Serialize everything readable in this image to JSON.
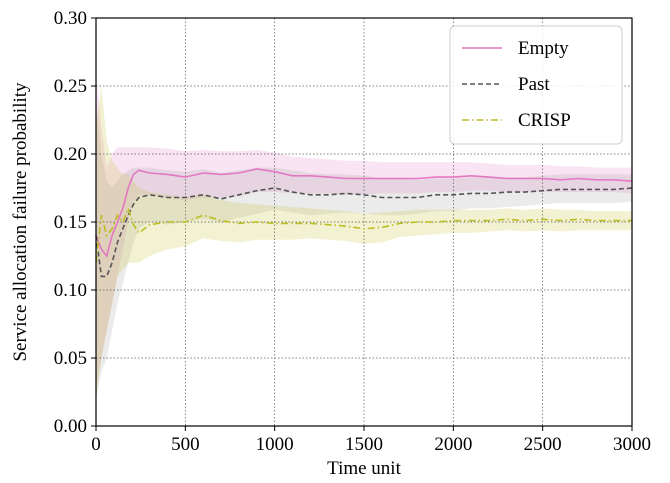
{
  "chart_data": {
    "type": "line",
    "xlabel": "Time unit",
    "ylabel": "Service allocation failure probability",
    "xlim": [
      0,
      3000
    ],
    "ylim": [
      0.0,
      0.3
    ],
    "xticks": [
      0,
      500,
      1000,
      1500,
      2000,
      2500,
      3000
    ],
    "xtick_labels": [
      "0",
      "500",
      "1000",
      "1500",
      "2000",
      "2500",
      "3000"
    ],
    "yticks": [
      0.0,
      0.05,
      0.1,
      0.15,
      0.2,
      0.25,
      0.3
    ],
    "ytick_labels": [
      "0.00",
      "0.05",
      "0.10",
      "0.15",
      "0.20",
      "0.25",
      "0.30"
    ],
    "grid": true,
    "legend_position": "top-right",
    "series": [
      {
        "name": "Empty",
        "color": "#e377c2",
        "line_style": "solid",
        "band_color": "#e377c2",
        "x": [
          0,
          30,
          60,
          90,
          120,
          150,
          180,
          210,
          240,
          300,
          400,
          500,
          600,
          700,
          800,
          900,
          1000,
          1100,
          1200,
          1300,
          1400,
          1500,
          1600,
          1700,
          1800,
          1900,
          2000,
          2100,
          2200,
          2300,
          2400,
          2500,
          2600,
          2700,
          2800,
          2900,
          3000
        ],
        "y": [
          0.14,
          0.13,
          0.125,
          0.14,
          0.15,
          0.16,
          0.175,
          0.185,
          0.188,
          0.186,
          0.185,
          0.183,
          0.186,
          0.185,
          0.186,
          0.189,
          0.187,
          0.184,
          0.184,
          0.183,
          0.182,
          0.182,
          0.182,
          0.182,
          0.182,
          0.183,
          0.183,
          0.184,
          0.183,
          0.182,
          0.182,
          0.182,
          0.181,
          0.182,
          0.181,
          0.181,
          0.18
        ],
        "upper": [
          0.26,
          0.22,
          0.19,
          0.2,
          0.205,
          0.205,
          0.205,
          0.205,
          0.205,
          0.205,
          0.204,
          0.202,
          0.203,
          0.202,
          0.202,
          0.203,
          0.201,
          0.198,
          0.197,
          0.196,
          0.195,
          0.195,
          0.194,
          0.194,
          0.194,
          0.194,
          0.194,
          0.194,
          0.193,
          0.192,
          0.192,
          0.192,
          0.191,
          0.191,
          0.19,
          0.19,
          0.19
        ],
        "lower": [
          0.03,
          0.05,
          0.07,
          0.09,
          0.11,
          0.13,
          0.15,
          0.165,
          0.17,
          0.17,
          0.168,
          0.166,
          0.168,
          0.168,
          0.169,
          0.172,
          0.172,
          0.171,
          0.171,
          0.171,
          0.17,
          0.17,
          0.171,
          0.171,
          0.171,
          0.172,
          0.172,
          0.173,
          0.173,
          0.172,
          0.172,
          0.172,
          0.172,
          0.172,
          0.172,
          0.172,
          0.171
        ]
      },
      {
        "name": "Past",
        "color": "#555555",
        "line_style": "dashed",
        "band_color": "#9a9a9a",
        "x": [
          0,
          30,
          60,
          90,
          120,
          150,
          180,
          210,
          240,
          300,
          400,
          500,
          600,
          700,
          800,
          900,
          1000,
          1100,
          1200,
          1300,
          1400,
          1500,
          1600,
          1700,
          1800,
          1900,
          2000,
          2100,
          2200,
          2300,
          2400,
          2500,
          2600,
          2700,
          2800,
          2900,
          3000
        ],
        "y": [
          0.14,
          0.11,
          0.11,
          0.12,
          0.135,
          0.145,
          0.155,
          0.163,
          0.168,
          0.17,
          0.168,
          0.168,
          0.17,
          0.167,
          0.17,
          0.173,
          0.175,
          0.172,
          0.17,
          0.17,
          0.171,
          0.17,
          0.168,
          0.168,
          0.168,
          0.17,
          0.17,
          0.171,
          0.171,
          0.172,
          0.172,
          0.173,
          0.174,
          0.174,
          0.174,
          0.174,
          0.175
        ],
        "upper": [
          0.24,
          0.2,
          0.18,
          0.175,
          0.18,
          0.185,
          0.188,
          0.19,
          0.19,
          0.19,
          0.188,
          0.187,
          0.189,
          0.186,
          0.188,
          0.19,
          0.19,
          0.188,
          0.186,
          0.185,
          0.185,
          0.184,
          0.182,
          0.182,
          0.181,
          0.182,
          0.182,
          0.183,
          0.183,
          0.183,
          0.183,
          0.184,
          0.185,
          0.185,
          0.185,
          0.185,
          0.185
        ],
        "lower": [
          0.02,
          0.04,
          0.05,
          0.07,
          0.09,
          0.105,
          0.12,
          0.135,
          0.145,
          0.15,
          0.148,
          0.15,
          0.152,
          0.15,
          0.153,
          0.156,
          0.159,
          0.157,
          0.155,
          0.156,
          0.157,
          0.156,
          0.155,
          0.155,
          0.156,
          0.158,
          0.158,
          0.16,
          0.16,
          0.161,
          0.162,
          0.163,
          0.164,
          0.164,
          0.164,
          0.164,
          0.165
        ]
      },
      {
        "name": "CRISP",
        "color": "#bcbd22",
        "line_style": "dashdot",
        "band_color": "#bcbd22",
        "x": [
          0,
          30,
          60,
          90,
          120,
          150,
          180,
          210,
          240,
          300,
          400,
          500,
          600,
          700,
          800,
          900,
          1000,
          1100,
          1200,
          1300,
          1400,
          1500,
          1600,
          1700,
          1800,
          1900,
          2000,
          2100,
          2200,
          2300,
          2400,
          2500,
          2600,
          2700,
          2800,
          2900,
          3000
        ],
        "y": [
          0.12,
          0.155,
          0.14,
          0.145,
          0.155,
          0.15,
          0.16,
          0.148,
          0.142,
          0.148,
          0.15,
          0.15,
          0.155,
          0.151,
          0.149,
          0.15,
          0.149,
          0.149,
          0.149,
          0.148,
          0.147,
          0.145,
          0.146,
          0.149,
          0.15,
          0.15,
          0.151,
          0.151,
          0.151,
          0.152,
          0.151,
          0.152,
          0.151,
          0.152,
          0.151,
          0.151,
          0.151
        ],
        "upper": [
          0.22,
          0.25,
          0.21,
          0.195,
          0.19,
          0.185,
          0.185,
          0.18,
          0.175,
          0.172,
          0.17,
          0.168,
          0.17,
          0.166,
          0.164,
          0.163,
          0.162,
          0.161,
          0.16,
          0.159,
          0.158,
          0.156,
          0.157,
          0.158,
          0.159,
          0.159,
          0.159,
          0.159,
          0.159,
          0.16,
          0.159,
          0.16,
          0.159,
          0.159,
          0.158,
          0.158,
          0.158
        ],
        "lower": [
          0.02,
          0.05,
          0.07,
          0.09,
          0.11,
          0.115,
          0.12,
          0.12,
          0.12,
          0.125,
          0.13,
          0.132,
          0.138,
          0.136,
          0.135,
          0.137,
          0.137,
          0.137,
          0.138,
          0.137,
          0.136,
          0.134,
          0.135,
          0.139,
          0.14,
          0.141,
          0.142,
          0.142,
          0.143,
          0.144,
          0.143,
          0.144,
          0.143,
          0.144,
          0.144,
          0.144,
          0.144
        ]
      }
    ]
  }
}
